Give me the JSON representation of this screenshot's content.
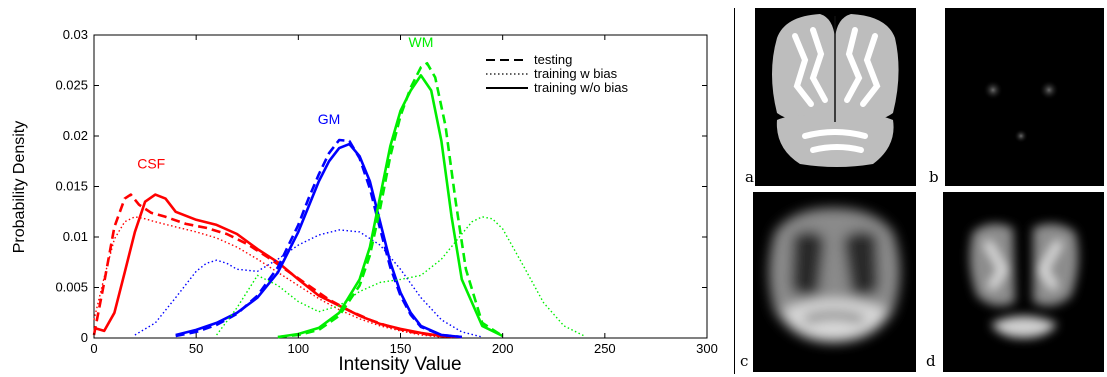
{
  "chart_data": {
    "type": "line",
    "xlabel": "Intensity Value",
    "ylabel": "Probability Density",
    "xlim": [
      0,
      300
    ],
    "ylim": [
      0,
      0.03
    ],
    "x_ticks": [
      "0",
      "50",
      "100",
      "150",
      "200",
      "250",
      "300"
    ],
    "y_ticks": [
      "0",
      "0.005",
      "0.01",
      "0.015",
      "0.02",
      "0.025",
      "0.03"
    ],
    "grid": false,
    "legend_position": "top-right",
    "legend": [
      {
        "label": "testing",
        "style": "dashed"
      },
      {
        "label": "training w bias",
        "style": "dotted"
      },
      {
        "label": "training w/o bias",
        "style": "solid"
      }
    ],
    "annotations": [
      {
        "text": "CSF",
        "x": 28,
        "y": 0.0168,
        "color": "#ff0000"
      },
      {
        "text": "GM",
        "x": 115,
        "y": 0.0212,
        "color": "#0000ff"
      },
      {
        "text": "WM",
        "x": 160,
        "y": 0.0288,
        "color": "#00ee00"
      }
    ],
    "series": [
      {
        "group": "CSF",
        "style": "solid",
        "color": "#ff0000",
        "x": [
          0,
          5,
          10,
          15,
          20,
          25,
          30,
          35,
          40,
          50,
          60,
          70,
          80,
          90,
          100,
          110,
          120,
          130,
          140,
          150,
          160,
          170,
          180
        ],
        "y": [
          0.001,
          0.0007,
          0.0025,
          0.0065,
          0.0105,
          0.0135,
          0.0142,
          0.0138,
          0.0125,
          0.0117,
          0.0112,
          0.0103,
          0.0088,
          0.0075,
          0.0058,
          0.0042,
          0.0032,
          0.0022,
          0.0014,
          0.0009,
          0.0005,
          0.0002,
          0.0001
        ]
      },
      {
        "group": "CSF",
        "style": "dashed",
        "color": "#ff0000",
        "x": [
          0,
          5,
          10,
          15,
          18,
          22,
          28,
          35,
          45,
          55,
          65,
          75,
          85,
          95,
          105,
          115,
          125,
          135,
          145,
          155,
          165,
          175
        ],
        "y": [
          0.0003,
          0.0055,
          0.011,
          0.0138,
          0.0142,
          0.0132,
          0.0124,
          0.012,
          0.0113,
          0.0109,
          0.0103,
          0.0093,
          0.008,
          0.0066,
          0.0052,
          0.0038,
          0.0027,
          0.0018,
          0.0011,
          0.0006,
          0.0003,
          0.0001
        ]
      },
      {
        "group": "CSF",
        "style": "dotted",
        "color": "#ff0000",
        "x": [
          0,
          5,
          10,
          15,
          20,
          25,
          30,
          40,
          50,
          60,
          70,
          80,
          90,
          100,
          110,
          120,
          130,
          140,
          150,
          160,
          170
        ],
        "y": [
          0.0018,
          0.006,
          0.0098,
          0.0115,
          0.012,
          0.0118,
          0.0115,
          0.011,
          0.0105,
          0.0099,
          0.009,
          0.0078,
          0.0065,
          0.0052,
          0.0039,
          0.0028,
          0.0019,
          0.0012,
          0.0007,
          0.0003,
          0.0001
        ]
      },
      {
        "group": "GM",
        "style": "solid",
        "color": "#0000ff",
        "x": [
          40,
          50,
          60,
          70,
          80,
          90,
          100,
          105,
          110,
          115,
          120,
          125,
          130,
          135,
          140,
          145,
          150,
          155,
          160,
          170,
          180
        ],
        "y": [
          0.0003,
          0.0008,
          0.0015,
          0.0025,
          0.004,
          0.0065,
          0.0105,
          0.013,
          0.0155,
          0.0175,
          0.0188,
          0.0192,
          0.018,
          0.0155,
          0.0115,
          0.0075,
          0.0045,
          0.0025,
          0.0012,
          0.0003,
          0.0001
        ]
      },
      {
        "group": "GM",
        "style": "dashed",
        "color": "#0000ff",
        "x": [
          40,
          50,
          60,
          70,
          80,
          90,
          100,
          105,
          110,
          115,
          120,
          125,
          130,
          135,
          140,
          145,
          150,
          155,
          160,
          170,
          180
        ],
        "y": [
          0.0002,
          0.0006,
          0.0013,
          0.0024,
          0.0042,
          0.007,
          0.0112,
          0.0138,
          0.0162,
          0.0183,
          0.0196,
          0.0195,
          0.0178,
          0.0148,
          0.0108,
          0.007,
          0.0042,
          0.0023,
          0.0011,
          0.0003,
          0.0001
        ]
      },
      {
        "group": "GM",
        "style": "dotted",
        "color": "#0000ff",
        "x": [
          20,
          30,
          40,
          50,
          55,
          60,
          65,
          70,
          80,
          90,
          100,
          110,
          120,
          130,
          140,
          150,
          160,
          170,
          180,
          190
        ],
        "y": [
          0.0003,
          0.0015,
          0.004,
          0.0066,
          0.0074,
          0.0077,
          0.0074,
          0.0068,
          0.0066,
          0.0078,
          0.0092,
          0.0102,
          0.0107,
          0.0105,
          0.0092,
          0.0068,
          0.004,
          0.0018,
          0.0006,
          0.0001
        ]
      },
      {
        "group": "WM",
        "style": "solid",
        "color": "#00ee00",
        "x": [
          90,
          100,
          110,
          120,
          130,
          135,
          140,
          145,
          150,
          155,
          160,
          165,
          170,
          175,
          180,
          190,
          200
        ],
        "y": [
          0.0001,
          0.0004,
          0.001,
          0.0025,
          0.0058,
          0.009,
          0.014,
          0.019,
          0.0225,
          0.0245,
          0.026,
          0.0245,
          0.0195,
          0.012,
          0.0058,
          0.0012,
          0.0002
        ]
      },
      {
        "group": "WM",
        "style": "dashed",
        "color": "#00ee00",
        "x": [
          90,
          100,
          110,
          120,
          130,
          135,
          140,
          145,
          150,
          155,
          160,
          163,
          167,
          172,
          177,
          182,
          190,
          200
        ],
        "y": [
          0.0001,
          0.0003,
          0.0008,
          0.0022,
          0.0052,
          0.0082,
          0.0128,
          0.018,
          0.022,
          0.0248,
          0.0268,
          0.0272,
          0.0258,
          0.021,
          0.0135,
          0.0068,
          0.0015,
          0.0002
        ]
      },
      {
        "group": "WM",
        "style": "dotted",
        "color": "#00ee00",
        "x": [
          60,
          70,
          80,
          90,
          100,
          110,
          120,
          130,
          140,
          150,
          160,
          170,
          180,
          185,
          190,
          195,
          200,
          210,
          220,
          230,
          240
        ],
        "y": [
          0.0003,
          0.003,
          0.0062,
          0.0052,
          0.0036,
          0.0026,
          0.0032,
          0.0046,
          0.0055,
          0.0058,
          0.0062,
          0.0078,
          0.0103,
          0.0115,
          0.012,
          0.0118,
          0.0108,
          0.0072,
          0.0035,
          0.0012,
          0.0002
        ]
      }
    ]
  },
  "panels": [
    {
      "label": "a",
      "icon": "brain-segmentation-image"
    },
    {
      "label": "b",
      "icon": "brain-bias-field-image"
    },
    {
      "label": "c",
      "icon": "brain-blurred-image"
    },
    {
      "label": "d",
      "icon": "brain-probability-map-image"
    }
  ]
}
